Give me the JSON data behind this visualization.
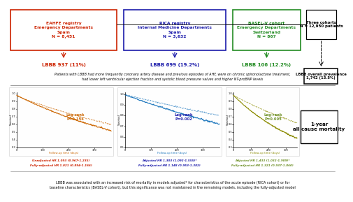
{
  "top_boxes": [
    {
      "title": "EAHFE registry\nEmergency Departments\nSpain\nN = 8,451",
      "edge_color": "#cc2200",
      "text_color": "#cc2200",
      "lbbb": "LBBB 937 (11%)",
      "lbbb_color": "#cc2200"
    },
    {
      "title": "RICA registry\nInternal Medicine Departments\nSpain\nN = 3,632",
      "edge_color": "#1a1aaa",
      "text_color": "#1a1aaa",
      "lbbb": "LBBB 699 (19.2%)",
      "lbbb_color": "#1a1aaa"
    },
    {
      "title": "BASEL-V cohort\nEmergency Departments\nSwitzerland\nN = 867",
      "edge_color": "#228B22",
      "text_color": "#228B22",
      "lbbb": "LBBB 106 (12.2%)",
      "lbbb_color": "#228B22"
    }
  ],
  "right_box_title": "Three cohorts\nN = 12,950 patients",
  "right_box_bottom": "LBBB overall prevalence\n1,742 (13.5%)",
  "middle_text": "Patients with LBBB had more frequently coronary artery disease and previous episodes of AHF, were on chronic spironolactone treatment,\nhad lower left ventricular ejection fraction and systolic blood pressure values and higher NT-proBNP levels",
  "curve_panels": [
    {
      "logrank": "Log-rank\nP=0.154",
      "logrank_color": "#cc6600",
      "hr_line1": "Unadjusted HR 1.093 (0.967-1.235)",
      "hr_line2": "Fully-adjusted HR 1.021 (0.894-1.166)",
      "hr_color": "#cc2200",
      "line_color1": "#cc6600",
      "line_color2": "#cc6600"
    },
    {
      "logrank": "Log-rank\nP=0.002",
      "logrank_color": "#1a1aaa",
      "hr_line1": "Adjusted HR 1.303 (1.092-1.555)*",
      "hr_line2": "Fully-adjusted HR 1.148 (0.953-1.382)",
      "hr_color": "#1a1aaa",
      "line_color1": "#1a75bc",
      "line_color2": "#1a75bc"
    },
    {
      "logrank": "Log-rank\nP=0.005",
      "logrank_color": "#6B8E23",
      "hr_line1": "Adjusted HR 1.433 (1.032-1.989)*",
      "hr_line2": "Fully-adjusted HR 1.321 (0.937-1.860)",
      "hr_color": "#6B8E23",
      "line_color1": "#8B8B00",
      "line_color2": "#8B8B00"
    }
  ],
  "mortality_box": "1-year\nall cause mortality",
  "bottom_text": "LBBB was associated with an increased risk of mortality in models adjusted* for characteristics of the acute episode (RICA cohort) or for\nbaseline characteristics (BASEL-V cohort), but this significance was not maintained in the remaining models, including the fully-adjusted model",
  "bg_color": "#ffffff"
}
